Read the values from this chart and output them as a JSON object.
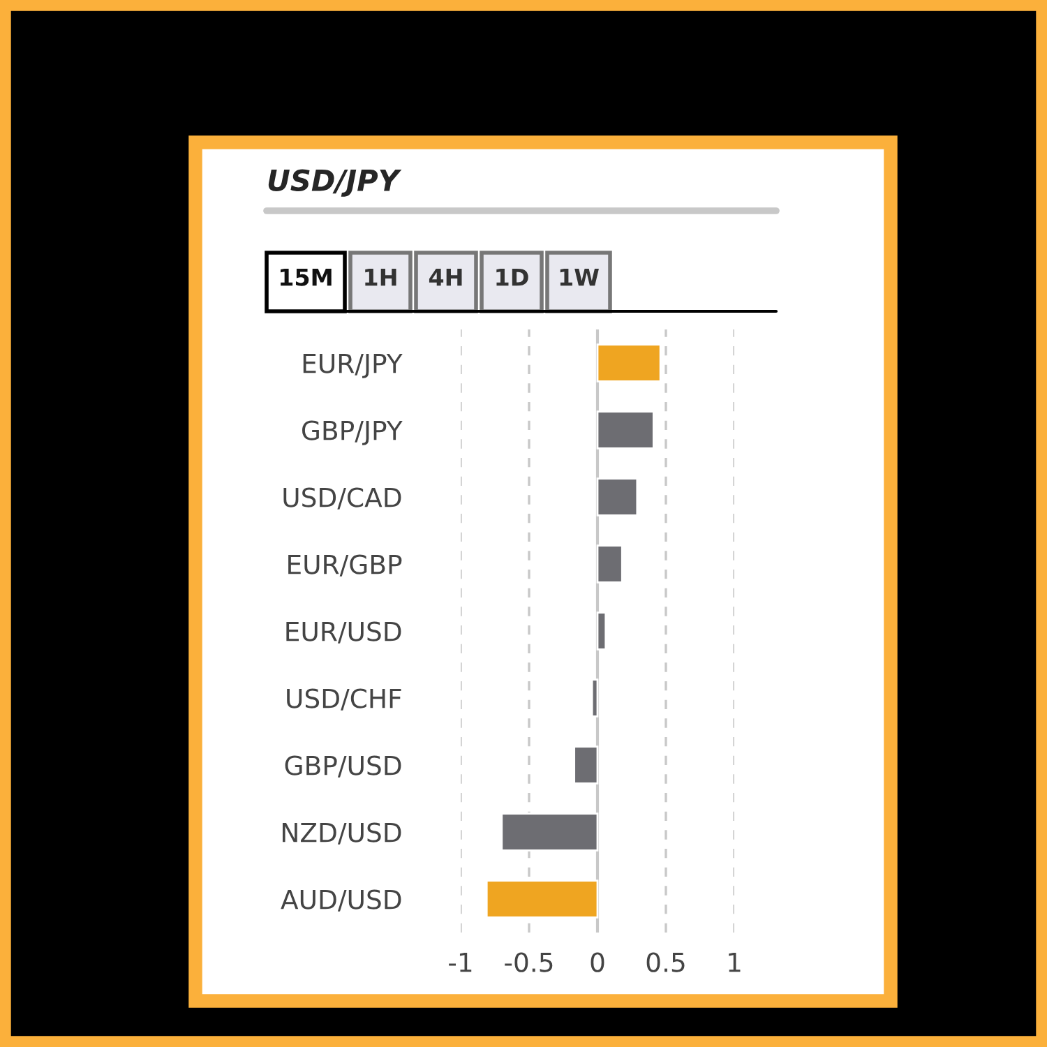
{
  "chart_data": {
    "type": "bar",
    "orientation": "horizontal",
    "title": "USD/JPY",
    "annotations": [
      "15M",
      "1H",
      "4H",
      "1D",
      "1W"
    ],
    "categories": [
      "EUR/JPY",
      "GBP/JPY",
      "USD/CAD",
      "EUR/GBP",
      "EUR/USD",
      "USD/CHF",
      "GBP/USD",
      "NZD/USD",
      "AUD/USD"
    ],
    "values": [
      0.46,
      0.41,
      0.29,
      0.18,
      0.06,
      -0.04,
      -0.17,
      -0.7,
      -0.81
    ],
    "colors": [
      "#efa521",
      "#6d6d72",
      "#6d6d72",
      "#6d6d72",
      "#6d6d72",
      "#6d6d72",
      "#6d6d72",
      "#6d6d72",
      "#efa521"
    ],
    "xlim": [
      -1,
      1
    ],
    "xticks": [
      -1,
      -0.5,
      0,
      0.5,
      1
    ],
    "grid": "x",
    "legend": false
  }
}
